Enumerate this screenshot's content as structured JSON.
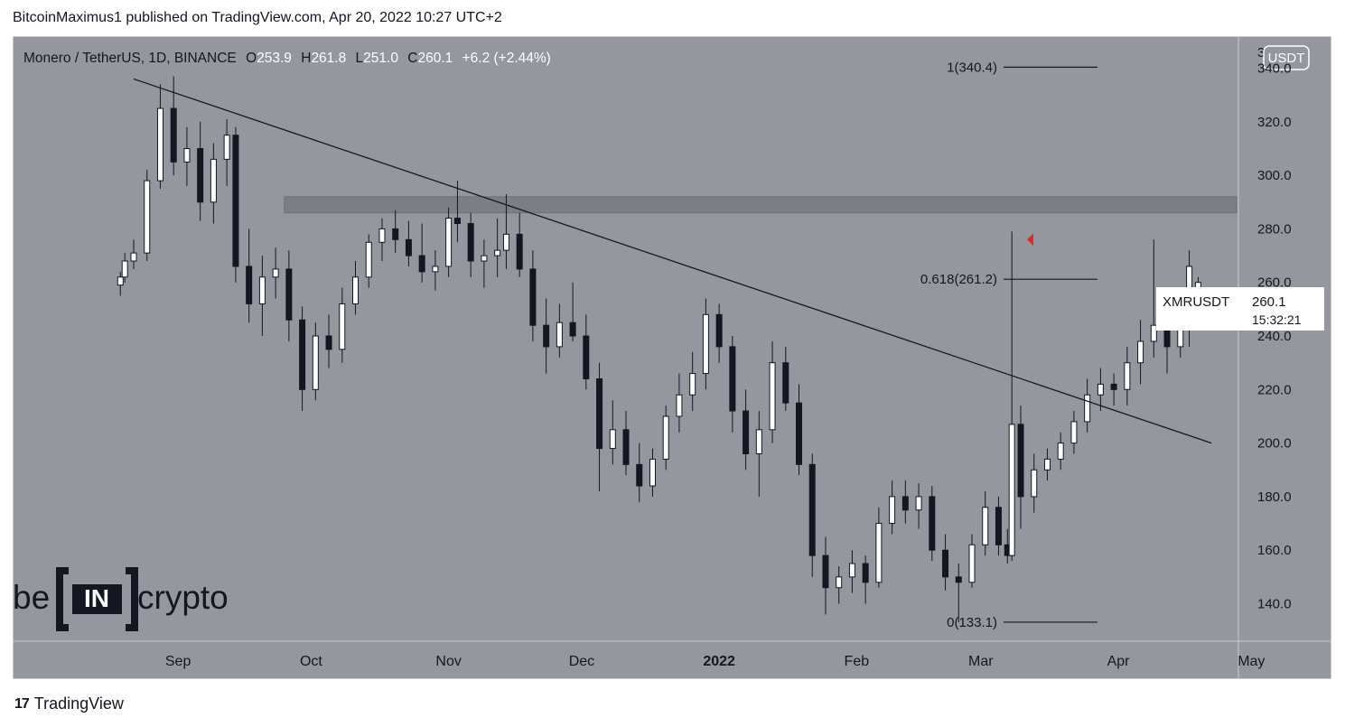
{
  "header": {
    "published_text": "BitcoinMaximus1 published on TradingView.com, Apr 20, 2022 10:27 UTC+2"
  },
  "legend": {
    "symbol": "Monero / TetherUS, 1D, BINANCE",
    "o_label": "O",
    "o_value": "253.9",
    "h_label": "H",
    "h_value": "261.8",
    "l_label": "L",
    "l_value": "251.0",
    "c_label": "C",
    "c_value": "260.1",
    "change": "+6.2 (+2.44%)"
  },
  "axis": {
    "currency": "USDT",
    "y_ticks": [
      "340.0",
      "320.0",
      "300.0",
      "280.0",
      "260.0",
      "240.0",
      "220.0",
      "200.0",
      "180.0",
      "160.0",
      "140.0"
    ],
    "top_cut_label": "3",
    "x_ticks": [
      "Sep",
      "Oct",
      "Nov",
      "Dec",
      "2022",
      "Feb",
      "Mar",
      "Apr",
      "May"
    ]
  },
  "price_tag": {
    "symbol": "XMRUSDT",
    "price": "260.1",
    "countdown": "15:32:21"
  },
  "watermark": {
    "text_left": "be",
    "text_mid": "IN",
    "text_right": "crypto"
  },
  "footer": {
    "brand": "TradingView",
    "brand_mark": "17"
  },
  "colors": {
    "background": "#95979f",
    "candle_up": "#ffffff",
    "candle_down": "#131722",
    "resistance": "#7c7e86",
    "marker": "#e0262a"
  },
  "chart_data": {
    "type": "candlestick",
    "title": "Monero / TetherUS, 1D, BINANCE",
    "ylim": [
      126,
      352
    ],
    "resistance_zone": [
      286,
      292
    ],
    "fib_levels": [
      {
        "ratio": "1",
        "price": 340.4,
        "label": "1(340.4)"
      },
      {
        "ratio": "0.618",
        "price": 261.2,
        "label": "0.618(261.2)"
      },
      {
        "ratio": "0",
        "price": 133.1,
        "label": "0(133.1)"
      }
    ],
    "trendline": {
      "start": [
        "2021-08-22",
        336
      ],
      "end": [
        "2022-04-22",
        200
      ]
    },
    "marker": {
      "date": "2022-03-10",
      "price": 276
    },
    "ohlc": [
      [
        "2021-08-19",
        259,
        264,
        255,
        262
      ],
      [
        "2021-08-20",
        262,
        271,
        260,
        268
      ],
      [
        "2021-08-22",
        268,
        276,
        265,
        271
      ],
      [
        "2021-08-25",
        271,
        302,
        268,
        298
      ],
      [
        "2021-08-28",
        298,
        334,
        295,
        325
      ],
      [
        "2021-08-31",
        325,
        337,
        300,
        305
      ],
      [
        "2021-09-03",
        305,
        318,
        296,
        310
      ],
      [
        "2021-09-06",
        310,
        320,
        283,
        290
      ],
      [
        "2021-09-09",
        290,
        312,
        282,
        306
      ],
      [
        "2021-09-12",
        306,
        321,
        296,
        315
      ],
      [
        "2021-09-14",
        315,
        318,
        260,
        266
      ],
      [
        "2021-09-17",
        266,
        280,
        245,
        252
      ],
      [
        "2021-09-20",
        252,
        270,
        240,
        262
      ],
      [
        "2021-09-23",
        262,
        273,
        254,
        265
      ],
      [
        "2021-09-26",
        265,
        272,
        238,
        246
      ],
      [
        "2021-09-29",
        246,
        251,
        212,
        220
      ],
      [
        "2021-10-02",
        220,
        245,
        216,
        240
      ],
      [
        "2021-10-05",
        240,
        248,
        228,
        235
      ],
      [
        "2021-10-08",
        235,
        258,
        230,
        252
      ],
      [
        "2021-10-11",
        252,
        268,
        248,
        262
      ],
      [
        "2021-10-14",
        262,
        278,
        258,
        275
      ],
      [
        "2021-10-17",
        275,
        284,
        268,
        280
      ],
      [
        "2021-10-20",
        280,
        287,
        271,
        276
      ],
      [
        "2021-10-23",
        276,
        283,
        266,
        270
      ],
      [
        "2021-10-26",
        270,
        282,
        260,
        264
      ],
      [
        "2021-10-29",
        264,
        272,
        257,
        266
      ],
      [
        "2021-11-01",
        266,
        288,
        262,
        284
      ],
      [
        "2021-11-03",
        284,
        298,
        275,
        282
      ],
      [
        "2021-11-06",
        282,
        286,
        262,
        268
      ],
      [
        "2021-11-09",
        268,
        276,
        258,
        270
      ],
      [
        "2021-11-12",
        270,
        284,
        262,
        272
      ],
      [
        "2021-11-14",
        272,
        293,
        265,
        278
      ],
      [
        "2021-11-17",
        278,
        286,
        262,
        265
      ],
      [
        "2021-11-20",
        265,
        272,
        238,
        244
      ],
      [
        "2021-11-23",
        244,
        254,
        226,
        236
      ],
      [
        "2021-11-26",
        236,
        252,
        232,
        245
      ],
      [
        "2021-11-29",
        245,
        260,
        238,
        240
      ],
      [
        "2021-12-02",
        240,
        248,
        220,
        224
      ],
      [
        "2021-12-05",
        224,
        230,
        182,
        198
      ],
      [
        "2021-12-08",
        198,
        216,
        192,
        205
      ],
      [
        "2021-12-11",
        205,
        212,
        188,
        192
      ],
      [
        "2021-12-14",
        192,
        200,
        178,
        184
      ],
      [
        "2021-12-17",
        184,
        198,
        180,
        194
      ],
      [
        "2021-12-20",
        194,
        214,
        190,
        210
      ],
      [
        "2021-12-23",
        210,
        226,
        204,
        218
      ],
      [
        "2021-12-26",
        218,
        234,
        212,
        226
      ],
      [
        "2021-12-29",
        226,
        254,
        220,
        248
      ],
      [
        "2022-01-01",
        248,
        252,
        230,
        236
      ],
      [
        "2022-01-04",
        236,
        240,
        204,
        212
      ],
      [
        "2022-01-07",
        212,
        220,
        190,
        196
      ],
      [
        "2022-01-10",
        196,
        212,
        180,
        205
      ],
      [
        "2022-01-13",
        205,
        238,
        200,
        230
      ],
      [
        "2022-01-16",
        230,
        236,
        212,
        215
      ],
      [
        "2022-01-19",
        215,
        222,
        188,
        192
      ],
      [
        "2022-01-22",
        192,
        196,
        150,
        158
      ],
      [
        "2022-01-25",
        158,
        165,
        136,
        146
      ],
      [
        "2022-01-28",
        146,
        154,
        140,
        150
      ],
      [
        "2022-01-31",
        150,
        160,
        144,
        155
      ],
      [
        "2022-02-03",
        155,
        158,
        140,
        148
      ],
      [
        "2022-02-06",
        148,
        176,
        146,
        170
      ],
      [
        "2022-02-09",
        170,
        186,
        166,
        180
      ],
      [
        "2022-02-12",
        180,
        186,
        170,
        175
      ],
      [
        "2022-02-15",
        175,
        185,
        168,
        180
      ],
      [
        "2022-02-18",
        180,
        184,
        156,
        160
      ],
      [
        "2022-02-21",
        160,
        166,
        145,
        150
      ],
      [
        "2022-02-24",
        150,
        155,
        133,
        148
      ],
      [
        "2022-02-27",
        148,
        166,
        146,
        162
      ],
      [
        "2022-03-02",
        162,
        182,
        158,
        176
      ],
      [
        "2022-03-05",
        176,
        180,
        158,
        162
      ],
      [
        "2022-03-07",
        162,
        168,
        155,
        158
      ],
      [
        "2022-03-08",
        158,
        279,
        156,
        207
      ],
      [
        "2022-03-10",
        207,
        214,
        168,
        180
      ],
      [
        "2022-03-13",
        180,
        196,
        174,
        190
      ],
      [
        "2022-03-16",
        190,
        198,
        186,
        194
      ],
      [
        "2022-03-19",
        194,
        204,
        190,
        200
      ],
      [
        "2022-03-22",
        200,
        212,
        196,
        208
      ],
      [
        "2022-03-25",
        208,
        224,
        204,
        218
      ],
      [
        "2022-03-28",
        218,
        228,
        212,
        222
      ],
      [
        "2022-03-31",
        222,
        226,
        214,
        220
      ],
      [
        "2022-04-03",
        220,
        236,
        214,
        230
      ],
      [
        "2022-04-06",
        230,
        246,
        222,
        238
      ],
      [
        "2022-04-09",
        238,
        276,
        232,
        244
      ],
      [
        "2022-04-12",
        244,
        250,
        226,
        236
      ],
      [
        "2022-04-15",
        236,
        248,
        232,
        244
      ],
      [
        "2022-04-17",
        244,
        272,
        236,
        266
      ],
      [
        "2022-04-19",
        254,
        262,
        251,
        260
      ]
    ]
  }
}
